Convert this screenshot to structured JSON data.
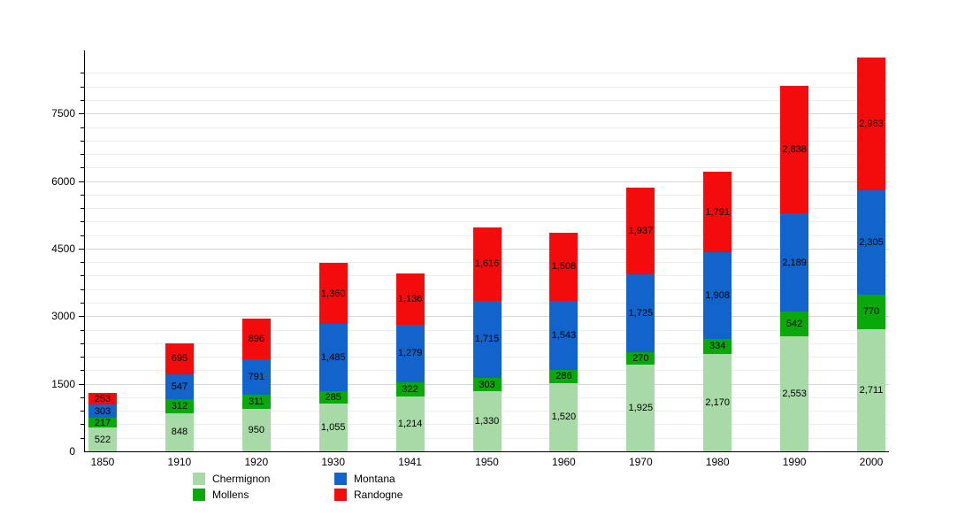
{
  "chart_data": {
    "type": "bar",
    "stacked": true,
    "title": "",
    "categories": [
      "1850",
      "1910",
      "1920",
      "1930",
      "1941",
      "1950",
      "1960",
      "1970",
      "1980",
      "1990",
      "2000"
    ],
    "series": [
      {
        "name": "Chermignon",
        "color": "#a7daa7",
        "values": [
          522,
          848,
          950,
          1055,
          1214,
          1330,
          1520,
          1925,
          2170,
          2553,
          2711
        ]
      },
      {
        "name": "Mollens",
        "color": "#09a909",
        "values": [
          217,
          312,
          311,
          285,
          322,
          303,
          286,
          270,
          334,
          542,
          770
        ]
      },
      {
        "name": "Montana",
        "color": "#1164cb",
        "values": [
          303,
          547,
          791,
          1485,
          1279,
          1715,
          1543,
          1725,
          1908,
          2189,
          2305
        ]
      },
      {
        "name": "Randogne",
        "color": "#f40b0b",
        "values": [
          253,
          695,
          896,
          1360,
          1136,
          1616,
          1508,
          1937,
          1791,
          2838,
          2963
        ]
      }
    ],
    "y_tick_labels": [
      "0",
      "1500",
      "3000",
      "4500",
      "6000",
      "7500"
    ],
    "y_tick_values": [
      0,
      1500,
      3000,
      4500,
      6000,
      7500
    ],
    "ylim": [
      0,
      8900
    ],
    "minor_grid_step": 300,
    "major_grid_step": 1500,
    "grid": true,
    "legend_position": "bottom",
    "value_labels": true,
    "colors": {
      "axis": "#000000",
      "minor_grid": "#ededed",
      "major_grid": "#d6d6d6",
      "background": "#ffffff",
      "label_text": "#000000"
    }
  }
}
